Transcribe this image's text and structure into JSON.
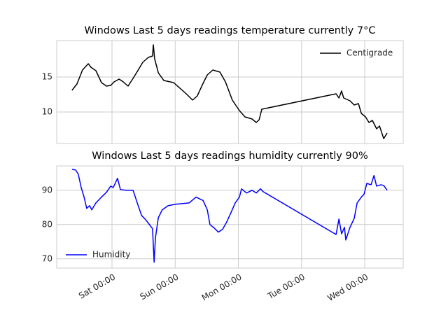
{
  "chart_data": [
    {
      "type": "line",
      "title": "Windows Last 5 days readings temperature currently 7°C",
      "x": [
        -15.2,
        -13.3,
        -11.2,
        -9.0,
        -8.0,
        -6.1,
        -4.0,
        -2.1,
        -0.5,
        0.8,
        2.7,
        4.3,
        6.1,
        8.0,
        9.8,
        11.7,
        13.8,
        15.4,
        15.7,
        16.2,
        17.6,
        19.7,
        23.4,
        26.1,
        28.2,
        30.6,
        32.4,
        34.6,
        36.2,
        38.3,
        41.0,
        43.1,
        45.7,
        48.4,
        50.5,
        53.2,
        54.8,
        55.9,
        56.9,
        85.1,
        86.2,
        87.2,
        88.0,
        90.4,
        92.0,
        93.6,
        94.7,
        96.3,
        97.6,
        98.9,
        100.5,
        101.6,
        103.2,
        104.5
      ],
      "series": [
        {
          "name": "Centigrade",
          "color": "#000000",
          "values": [
            13.1,
            14.0,
            16.0,
            16.9,
            16.4,
            15.9,
            14.2,
            13.7,
            13.8,
            14.3,
            14.7,
            14.3,
            13.7,
            14.8,
            15.9,
            17.1,
            17.8,
            18.0,
            19.6,
            17.6,
            15.6,
            14.5,
            14.2,
            13.3,
            12.6,
            11.7,
            12.3,
            14.1,
            15.3,
            16.0,
            15.7,
            14.3,
            11.7,
            10.2,
            9.3,
            9.0,
            8.5,
            8.9,
            10.4,
            12.6,
            12.0,
            13.0,
            12.0,
            11.6,
            11.0,
            11.2,
            9.8,
            9.3,
            8.5,
            8.8,
            7.6,
            8.0,
            6.2,
            7.0
          ]
        }
      ],
      "xlim": [
        -21,
        110.6
      ],
      "ylim": [
        5.5,
        20.2
      ],
      "yticks": [
        10,
        15
      ],
      "xticks": [
        0,
        24,
        48,
        72,
        96
      ],
      "grid": true,
      "legend": "upper right"
    },
    {
      "type": "line",
      "title": "Windows Last 5 days readings humidity currently 90%",
      "x": [
        -15.2,
        -13.8,
        -12.8,
        -11.7,
        -10.6,
        -9.6,
        -8.5,
        -7.7,
        -6.1,
        -4.0,
        -2.1,
        -0.5,
        0.5,
        2.1,
        3.2,
        5.3,
        8.0,
        9.6,
        11.2,
        12.8,
        14.4,
        15.4,
        16.0,
        16.5,
        17.6,
        19.1,
        21.3,
        23.9,
        26.6,
        29.3,
        31.9,
        34.6,
        36.2,
        37.2,
        38.8,
        40.4,
        42.0,
        43.6,
        45.2,
        46.8,
        48.4,
        49.2,
        51.1,
        53.2,
        54.8,
        56.4,
        57.4,
        85.1,
        86.2,
        87.2,
        88.3,
        88.8,
        90.4,
        92.0,
        93.1,
        94.7,
        95.7,
        96.8,
        98.4,
        99.5,
        100.5,
        102.1,
        103.2,
        104.5
      ],
      "series": [
        {
          "name": "Humidity",
          "color": "#0000ff",
          "values": [
            96.1,
            95.9,
            94.7,
            90.8,
            88.0,
            84.7,
            85.5,
            84.3,
            86.3,
            88.0,
            89.4,
            91.2,
            90.8,
            93.5,
            90.2,
            90.0,
            90.0,
            86.3,
            82.7,
            81.4,
            79.8,
            78.8,
            69.0,
            76.1,
            82.0,
            84.3,
            85.5,
            85.9,
            86.1,
            86.3,
            88.0,
            87.0,
            84.3,
            80.0,
            79.0,
            77.8,
            78.6,
            80.8,
            83.5,
            86.3,
            88.0,
            90.4,
            89.2,
            90.0,
            89.2,
            90.4,
            89.6,
            77.1,
            81.6,
            77.3,
            79.2,
            75.5,
            79.2,
            81.8,
            86.3,
            88.0,
            88.8,
            92.0,
            91.6,
            94.3,
            91.2,
            91.6,
            91.4,
            90.0
          ]
        }
      ],
      "xlim": [
        -21,
        110.6
      ],
      "ylim": [
        67.3,
        97.1
      ],
      "yticks": [
        70,
        80,
        90
      ],
      "xticks": [
        {
          "value": 0,
          "label": "Sat 00:00"
        },
        {
          "value": 24,
          "label": "Sun 00:00"
        },
        {
          "value": 48,
          "label": "Mon 00:00"
        },
        {
          "value": 72,
          "label": "Tue 00:00"
        },
        {
          "value": 96,
          "label": "Wed 00:00"
        }
      ],
      "grid": true,
      "legend": "lower left"
    }
  ]
}
